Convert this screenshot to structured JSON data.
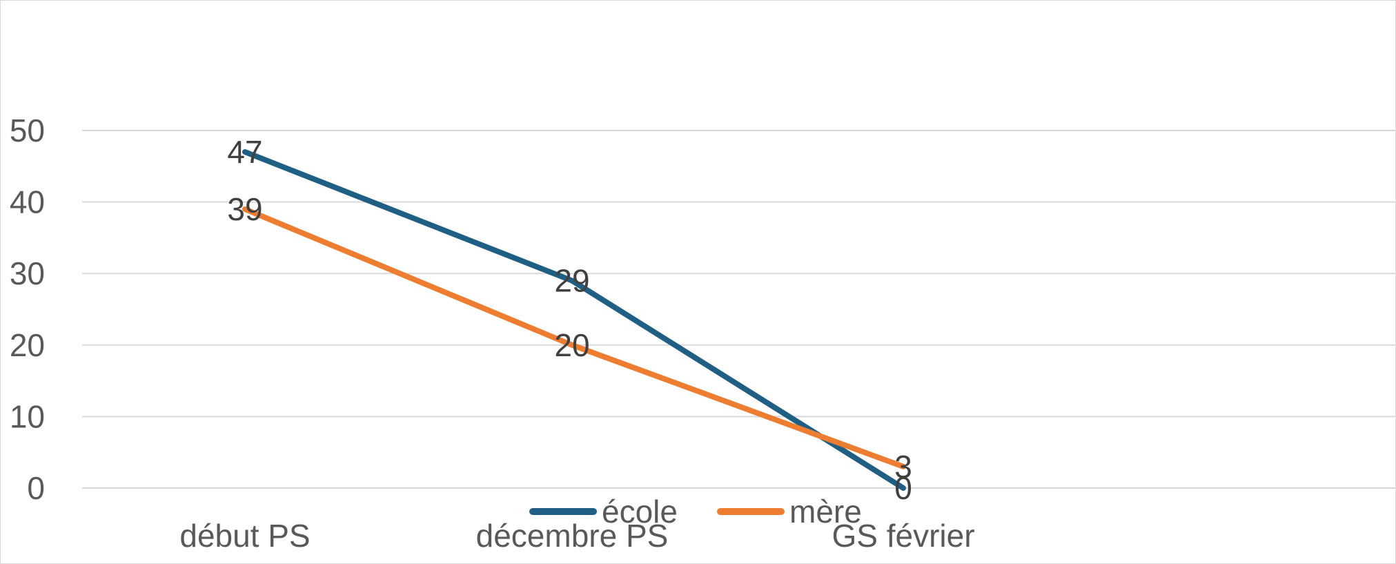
{
  "chart_data": {
    "type": "line",
    "categories": [
      "début PS",
      "décembre PS",
      "GS février"
    ],
    "series": [
      {
        "name": "école",
        "values": [
          47,
          29,
          0
        ],
        "color": "#1f5f84"
      },
      {
        "name": "mère",
        "values": [
          39,
          20,
          3
        ],
        "color": "#ed7d31"
      }
    ],
    "y_ticks": [
      0,
      10,
      20,
      30,
      40,
      50
    ],
    "ylim": [
      0,
      50
    ],
    "grid": true,
    "legend_placement": "bottom",
    "data_labels": true
  }
}
